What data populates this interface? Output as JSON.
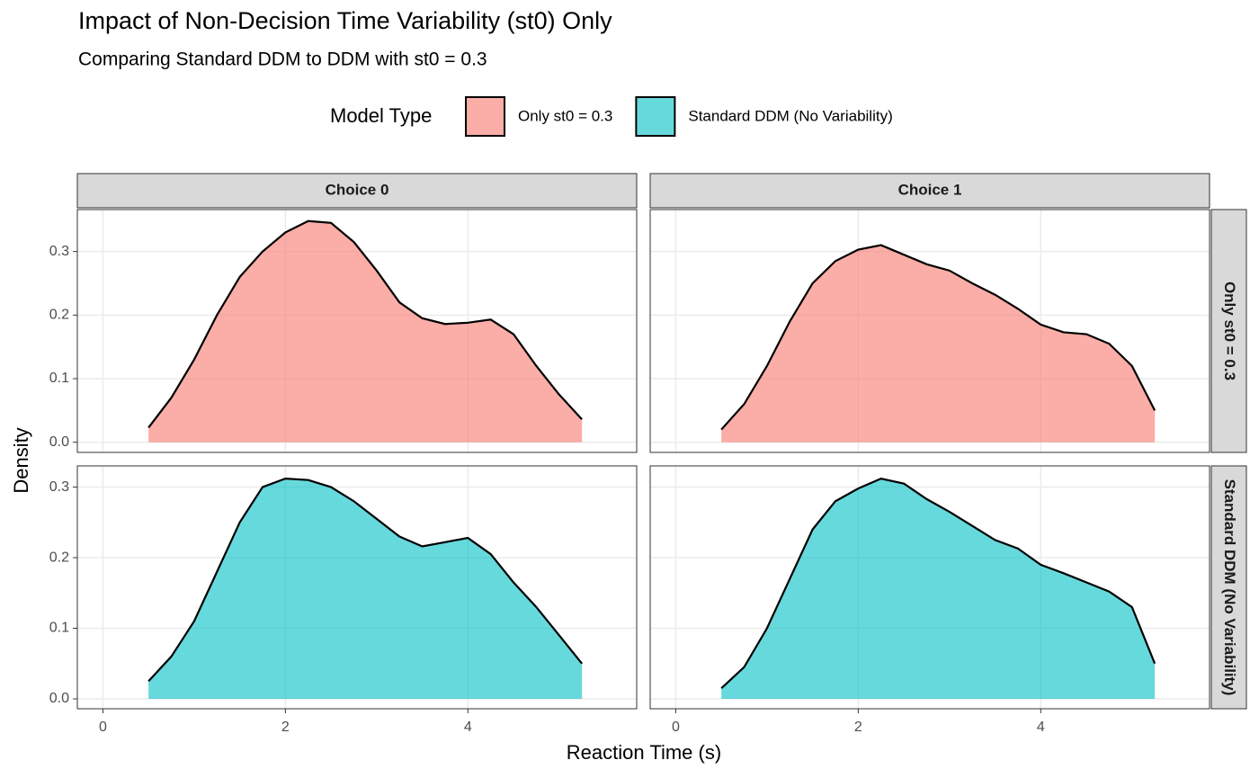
{
  "chart_data": {
    "type": "area",
    "title": "Impact of Non-Decision Time Variability (st0) Only",
    "subtitle": "Comparing Standard DDM to DDM with st0 = 0.3",
    "x_label": "Reaction Time (s)",
    "y_label": "Density",
    "legend_title": "Model Type",
    "legend_position": "top",
    "grid": true,
    "columns": [
      "Choice 0",
      "Choice 1"
    ],
    "xlim": [
      -0.28,
      5.85
    ],
    "xticks": [
      0,
      2,
      4
    ],
    "series": [
      {
        "name": "Only st0 = 0.3",
        "color": "#F8766D",
        "ylim": [
          -0.016,
          0.366
        ],
        "yticks": [
          0.0,
          0.1,
          0.2,
          0.3
        ],
        "panels": [
          {
            "x": [
              0.5,
              0.75,
              1.0,
              1.25,
              1.5,
              1.75,
              2.0,
              2.25,
              2.5,
              2.75,
              3.0,
              3.25,
              3.5,
              3.75,
              4.0,
              4.25,
              4.5,
              4.75,
              5.0,
              5.25
            ],
            "values": [
              0.023,
              0.07,
              0.13,
              0.2,
              0.26,
              0.3,
              0.33,
              0.348,
              0.345,
              0.315,
              0.27,
              0.22,
              0.195,
              0.186,
              0.188,
              0.193,
              0.17,
              0.12,
              0.075,
              0.036
            ]
          },
          {
            "x": [
              0.5,
              0.75,
              1.0,
              1.25,
              1.5,
              1.75,
              2.0,
              2.25,
              2.5,
              2.75,
              3.0,
              3.25,
              3.5,
              3.75,
              4.0,
              4.25,
              4.5,
              4.75,
              5.0,
              5.25
            ],
            "values": [
              0.02,
              0.06,
              0.12,
              0.19,
              0.25,
              0.285,
              0.303,
              0.31,
              0.295,
              0.28,
              0.27,
              0.25,
              0.232,
              0.21,
              0.185,
              0.173,
              0.17,
              0.155,
              0.12,
              0.05
            ]
          }
        ]
      },
      {
        "name": "Standard DDM (No Variability)",
        "color": "#00BFC4",
        "ylim": [
          -0.014,
          0.33
        ],
        "yticks": [
          0.0,
          0.1,
          0.2,
          0.3
        ],
        "panels": [
          {
            "x": [
              0.5,
              0.75,
              1.0,
              1.25,
              1.5,
              1.75,
              2.0,
              2.25,
              2.5,
              2.75,
              3.0,
              3.25,
              3.5,
              3.75,
              4.0,
              4.25,
              4.5,
              4.75,
              5.0,
              5.25
            ],
            "values": [
              0.025,
              0.06,
              0.11,
              0.18,
              0.25,
              0.3,
              0.312,
              0.31,
              0.3,
              0.28,
              0.255,
              0.23,
              0.216,
              0.222,
              0.228,
              0.205,
              0.165,
              0.13,
              0.09,
              0.05
            ]
          },
          {
            "x": [
              0.5,
              0.75,
              1.0,
              1.25,
              1.5,
              1.75,
              2.0,
              2.25,
              2.5,
              2.75,
              3.0,
              3.25,
              3.5,
              3.75,
              4.0,
              4.25,
              4.5,
              4.75,
              5.0,
              5.25
            ],
            "values": [
              0.015,
              0.045,
              0.1,
              0.17,
              0.24,
              0.28,
              0.298,
              0.312,
              0.305,
              0.283,
              0.265,
              0.245,
              0.225,
              0.213,
              0.19,
              0.178,
              0.165,
              0.152,
              0.13,
              0.05
            ]
          }
        ]
      }
    ]
  }
}
